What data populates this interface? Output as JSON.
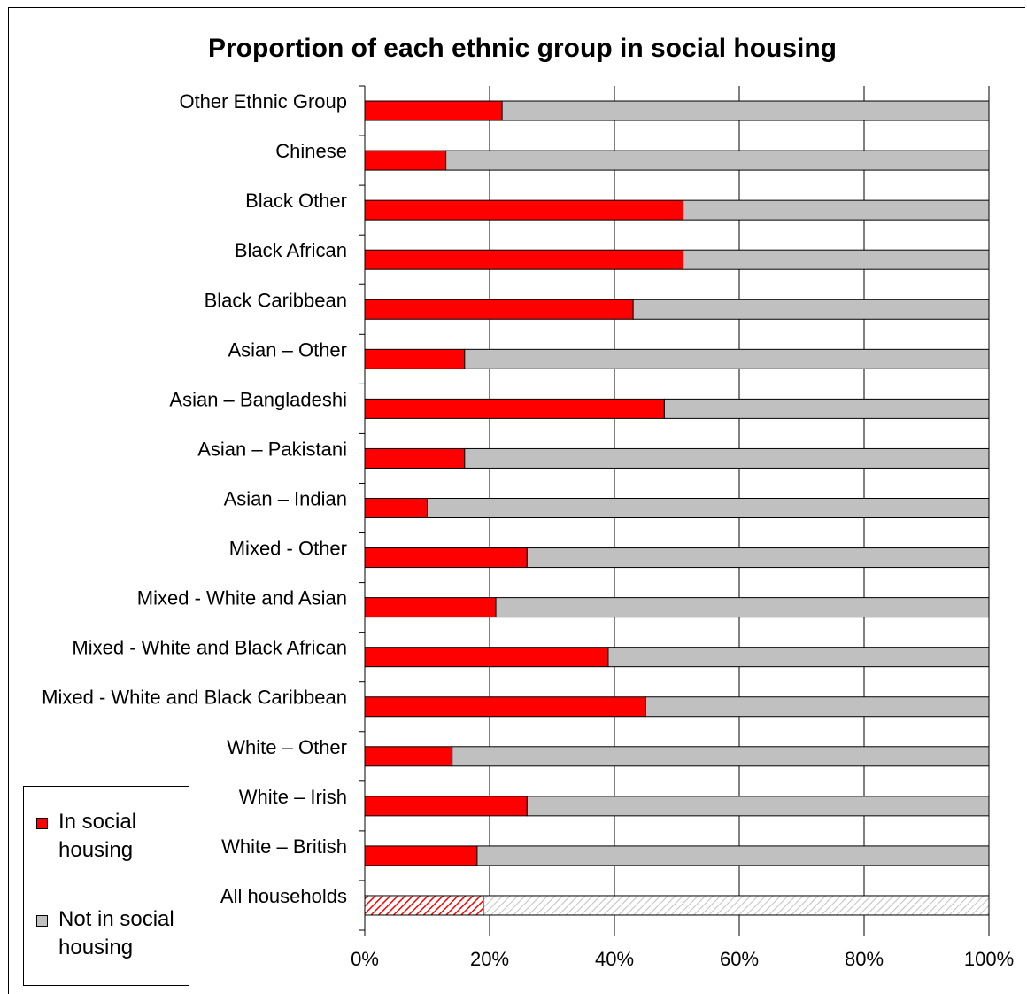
{
  "chart_data": {
    "type": "bar",
    "orientation": "horizontal",
    "stacked": "percent",
    "title": "Proportion of each ethnic group in social housing",
    "categories": [
      "Other Ethnic Group",
      "Chinese",
      "Black Other",
      "Black African",
      "Black Caribbean",
      "Asian – Other",
      "Asian – Bangladeshi",
      "Asian – Pakistani",
      "Asian – Indian",
      "Mixed - Other",
      "Mixed - White and Asian",
      "Mixed - White and Black African",
      "Mixed - White and Black Caribbean",
      "White – Other",
      "White – Irish",
      "White – British",
      "All households"
    ],
    "series": [
      {
        "name": "In social housing",
        "color": "#ff0000",
        "values": [
          22,
          13,
          51,
          51,
          43,
          16,
          48,
          16,
          10,
          26,
          21,
          39,
          45,
          14,
          26,
          18,
          19
        ]
      },
      {
        "name": "Not in social housing",
        "color": "#c0c0c0",
        "values": [
          78,
          87,
          49,
          49,
          57,
          84,
          52,
          84,
          90,
          74,
          79,
          61,
          55,
          86,
          74,
          82,
          81
        ]
      }
    ],
    "highlighted_category": "All households",
    "highlight_pattern": "hatched",
    "xlim": [
      0,
      100
    ],
    "xticks": [
      "0%",
      "20%",
      "40%",
      "60%",
      "80%",
      "100%"
    ],
    "xlabel": "",
    "ylabel": "",
    "grid": "vertical",
    "legend_position": "bottom-left"
  }
}
